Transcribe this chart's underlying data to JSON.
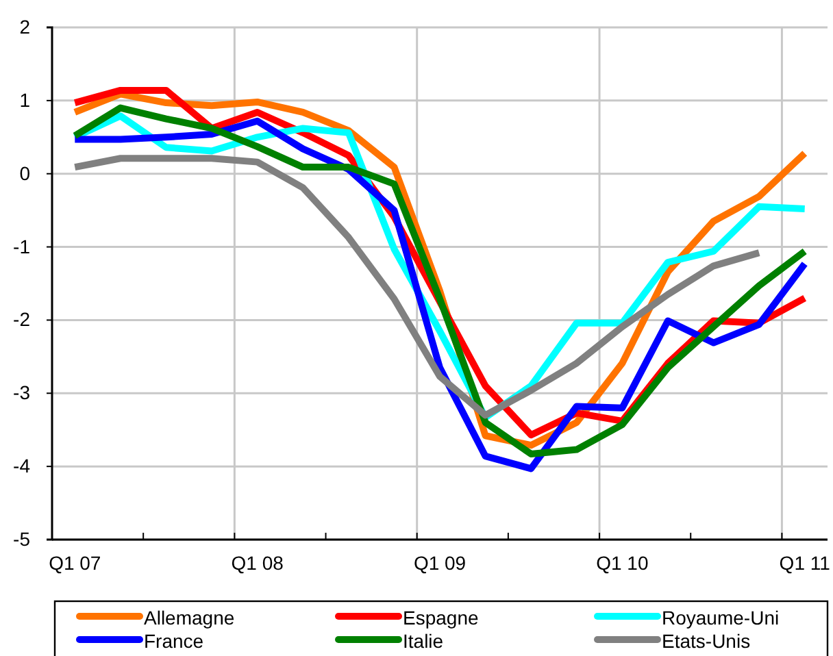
{
  "chart_data": {
    "type": "line",
    "categories": [
      "Q1 07",
      null,
      null,
      null,
      "Q1 08",
      null,
      null,
      null,
      "Q1 09",
      null,
      null,
      null,
      "Q1 10",
      null,
      null,
      null,
      "Q1 11"
    ],
    "ylim": [
      -5,
      2
    ],
    "yticks": [
      -5,
      -4,
      -3,
      -2,
      -1,
      0,
      1,
      2
    ],
    "grid": true,
    "legend": "bottom",
    "line_style": "solid",
    "marker": "none",
    "series": [
      {
        "name": "Allemagne",
        "color": "#ff7300",
        "values": [
          0.84,
          1.09,
          0.97,
          0.93,
          0.98,
          0.84,
          0.59,
          0.09,
          -1.6,
          -3.58,
          -3.71,
          -3.4,
          -2.59,
          -1.34,
          -0.65,
          -0.31,
          0.28
        ]
      },
      {
        "name": "Espagne",
        "color": "#ff0000",
        "values": [
          0.97,
          1.14,
          1.14,
          0.62,
          0.84,
          0.56,
          0.25,
          -0.59,
          -1.75,
          -2.9,
          -3.57,
          -3.27,
          -3.38,
          -2.59,
          -2.01,
          -2.04,
          -1.7
        ]
      },
      {
        "name": "Royaume-Uni",
        "color": "#00ffff",
        "values": [
          0.5,
          0.79,
          0.36,
          0.31,
          0.5,
          0.62,
          0.56,
          -1.03,
          -2.15,
          -3.33,
          -2.9,
          -2.04,
          -2.04,
          -1.21,
          -1.06,
          -0.45,
          -0.48
        ]
      },
      {
        "name": "France",
        "color": "#0000ff",
        "values": [
          0.47,
          0.47,
          0.5,
          0.54,
          0.72,
          0.34,
          0.06,
          -0.5,
          -2.65,
          -3.86,
          -4.03,
          -3.18,
          -3.2,
          -2.01,
          -2.31,
          -2.06,
          -1.23
        ]
      },
      {
        "name": "Italie",
        "color": "#008000",
        "values": [
          0.52,
          0.9,
          0.75,
          0.62,
          0.37,
          0.09,
          0.09,
          -0.14,
          -1.71,
          -3.4,
          -3.83,
          -3.77,
          -3.43,
          -2.65,
          -2.09,
          -1.53,
          -1.06
        ]
      },
      {
        "name": "Etats-Unis",
        "color": "#808080",
        "values": [
          0.09,
          0.21,
          0.21,
          0.21,
          0.16,
          -0.19,
          -0.87,
          -1.71,
          -2.77,
          -3.3,
          -2.96,
          -2.59,
          -2.09,
          -1.65,
          -1.26,
          -1.08,
          null
        ]
      }
    ]
  }
}
